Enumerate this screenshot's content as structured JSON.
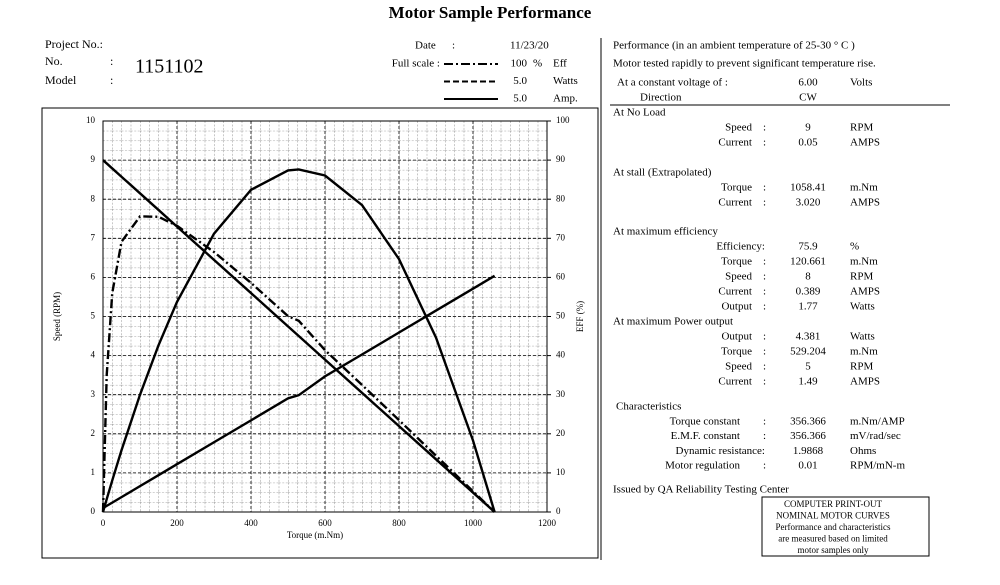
{
  "header": {
    "title": "Motor Sample Performance",
    "project_label": "Project No.:",
    "no_label": "No.",
    "no_colon": ":",
    "no_value": "1151102",
    "model_label": "Model",
    "model_colon": ":",
    "date_label": "Date",
    "date_colon": ":",
    "date_value": "11/23/20"
  },
  "chart_data": {
    "type": "line",
    "x_label": "Torque (m.Nm)",
    "y_label": "Speed (RPM)",
    "y2_label": "EFF (%)",
    "legend_title": "Full scale :",
    "x": [
      0,
      10,
      25,
      50,
      100,
      150,
      200,
      300,
      400,
      500,
      529,
      600,
      700,
      800,
      900,
      1000,
      1058.41
    ],
    "xlim": [
      0,
      1200
    ],
    "xticks": [
      0,
      200,
      400,
      600,
      800,
      1000,
      1200
    ],
    "ylim": [
      0,
      10
    ],
    "yticks": [
      0,
      1,
      2,
      3,
      4,
      5,
      6,
      7,
      8,
      9,
      10
    ],
    "y2lim": [
      0,
      100
    ],
    "y2ticks": [
      0,
      10,
      20,
      30,
      40,
      50,
      60,
      70,
      80,
      90,
      100
    ],
    "grid": true,
    "series": [
      {
        "name": "Eff",
        "full_scale": 100,
        "unit": "%",
        "style": "dashdot",
        "axis": "y2",
        "color": "#000000",
        "values": [
          0,
          35.0,
          56.0,
          69.1,
          75.6,
          75.5,
          73.2,
          66.5,
          58.6,
          50.1,
          48.9,
          41.4,
          32.5,
          23.5,
          14.4,
          5.3,
          0
        ]
      },
      {
        "name": "Watts",
        "full_scale": {
          "value": 5,
          "label": "5.0"
        },
        "style": "dashed",
        "color": "#000000",
        "values": [
          0,
          0.164,
          0.404,
          0.789,
          1.499,
          2.132,
          2.686,
          3.559,
          4.12,
          4.368,
          4.381,
          4.303,
          3.925,
          3.234,
          2.23,
          0.914,
          0
        ]
      },
      {
        "name": "Amp.",
        "full_scale": {
          "value": 5,
          "label": "5.0"
        },
        "style": "solid",
        "color": "#000000",
        "values": [
          0.05,
          0.078,
          0.12,
          0.19,
          0.331,
          0.471,
          0.611,
          0.892,
          1.172,
          1.453,
          1.494,
          1.734,
          2.014,
          2.295,
          2.576,
          2.856,
          3.02
        ]
      },
      {
        "axis": "y",
        "style": "solid",
        "color": "#000000",
        "values": [
          9,
          8.915,
          8.787,
          8.575,
          8.15,
          7.725,
          7.299,
          6.449,
          5.599,
          4.748,
          4.502,
          3.898,
          3.048,
          2.197,
          1.347,
          0.497,
          0
        ]
      }
    ]
  },
  "report": {
    "notes": [
      "Performance (in an ambient temperature of 25-30 ° C )",
      "Motor tested rapidly to prevent significant temperature rise."
    ],
    "conditions": [
      {
        "label": "At a constant voltage of :",
        "value": "6.00",
        "unit": "Volts"
      },
      {
        "label": "Direction",
        "value": "CW"
      }
    ],
    "sections": [
      {
        "title": "At No Load",
        "rows": [
          {
            "label": "Speed",
            "colon": ":",
            "value": "9",
            "unit": "RPM"
          },
          {
            "label": "Current",
            "colon": ":",
            "value": "0.05",
            "unit": "AMPS"
          }
        ]
      },
      {
        "title": "At stall (Extrapolated)",
        "rows": [
          {
            "label": "Torque",
            "colon": ":",
            "value": "1058.41",
            "unit": "m.Nm"
          },
          {
            "label": "Current",
            "colon": ":",
            "value": "3.020",
            "unit": "AMPS"
          }
        ]
      },
      {
        "title": "At maximum efficiency",
        "rows": [
          {
            "label": "Efficiency:",
            "value": "75.9",
            "unit": "%"
          },
          {
            "label": "Torque",
            "colon": ":",
            "value": "120.661",
            "unit": "m.Nm"
          },
          {
            "label": "Speed",
            "colon": ":",
            "value": "8",
            "unit": "RPM"
          },
          {
            "label": "Current",
            "colon": ":",
            "value": "0.389",
            "unit": "AMPS"
          },
          {
            "label": "Output",
            "colon": ":",
            "value": "1.77",
            "unit": "Watts"
          }
        ]
      },
      {
        "title": "At maximum Power output",
        "rows": [
          {
            "label": "Output",
            "colon": ":",
            "value": "4.381",
            "unit": "Watts"
          },
          {
            "label": "Torque",
            "colon": ":",
            "value": "529.204",
            "unit": "m.Nm"
          },
          {
            "label": "Speed",
            "colon": ":",
            "value": "5",
            "unit": "RPM"
          },
          {
            "label": "Current",
            "colon": ":",
            "value": "1.49",
            "unit": "AMPS"
          }
        ]
      },
      {
        "title": "Characteristics",
        "rows": [
          {
            "label": "Torque constant",
            "colon": ":",
            "value": "356.366",
            "unit": "m.Nm/AMP"
          },
          {
            "label": "E.M.F. constant",
            "colon": ":",
            "value": "356.366",
            "unit": "mV/rad/sec"
          },
          {
            "label": "Dynamic resistance:",
            "value": "1.9868",
            "unit": "Ohms"
          },
          {
            "label": "Motor regulation",
            "colon": ":",
            "value": "0.01",
            "unit": "RPM/mN-m"
          }
        ]
      }
    ],
    "issued_by": "Issued by QA Reliability Testing  Center",
    "disclaimer": [
      "COMPUTER PRINT-OUT",
      "NOMINAL MOTOR CURVES",
      "Performance and characteristics",
      "are measured based on limited",
      "motor samples only"
    ]
  }
}
